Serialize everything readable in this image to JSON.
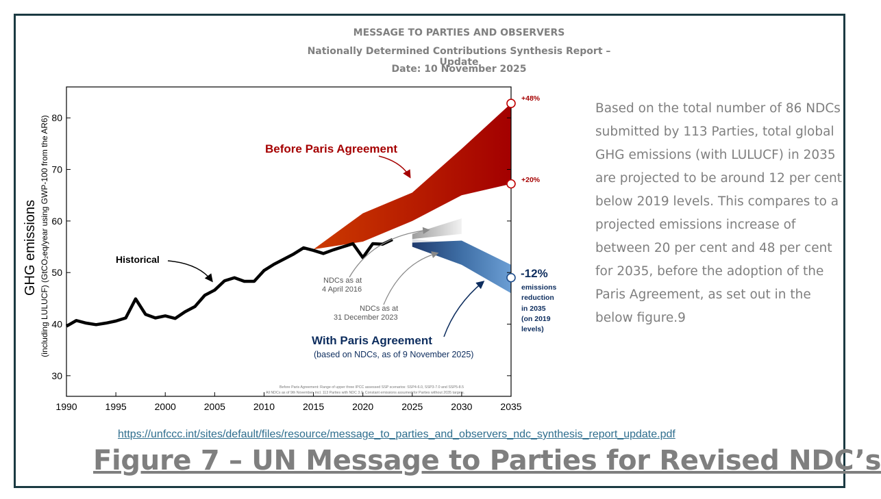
{
  "header": {
    "line1": "MESSAGE TO PARTIES AND OBSERVERS",
    "line2": "Nationally Determined Contributions Synthesis Report – Update",
    "line3": "Date: 10 November 2025"
  },
  "sidebar": {
    "text": "Based on the total number of 86 NDCs submitted by 113 Parties, total global GHG emissions (with LULUCF) in 2035 are projected to be around 12 per cent below 2019 levels. This compares to a projected emissions increase of between 20 per cent and 48 per cent for 2035, before the adoption of the Paris Agreement, as set out in the below figure.9"
  },
  "link": "https://unfccc.int/sites/default/files/resource/message_to_parties_and_observers_ndc_synthesis_report_update.pdf",
  "caption": "Figure 7 – UN Message to Parties for Revised NDC’s",
  "colors": {
    "before": "#c00000",
    "with": "#5b8cc0",
    "historical": "#000000",
    "text_grey": "#7f7f7f"
  },
  "chart_data": {
    "type": "line",
    "title": "",
    "ylabel": "GHG emissions",
    "ylabel_sub": "(including LULUCF) (GtCO₂eq/year using GWP-100 from the AR6)",
    "xlabel": "",
    "xlim": [
      1990,
      2035
    ],
    "ylim": [
      26,
      86
    ],
    "x_ticks": [
      "1990",
      "1995",
      "2000",
      "2005",
      "2010",
      "2015",
      "2020",
      "2025",
      "2030",
      "2035"
    ],
    "y_ticks": [
      "30",
      "40",
      "50",
      "60",
      "70",
      "80"
    ],
    "series": [
      {
        "name": "Historical",
        "x": [
          1990,
          1991,
          1992,
          1993,
          1994,
          1995,
          1996,
          1997,
          1998,
          1999,
          2000,
          2001,
          2002,
          2003,
          2004,
          2005,
          2006,
          2007,
          2008,
          2009,
          2010,
          2011,
          2012,
          2013,
          2014,
          2015,
          2016,
          2017,
          2018,
          2019,
          2020,
          2021,
          2022,
          2023
        ],
        "values": [
          39.6,
          40.7,
          40.2,
          39.9,
          40.2,
          40.6,
          41.2,
          44.9,
          41.9,
          41.2,
          41.6,
          41.1,
          42.4,
          43.4,
          45.6,
          46.6,
          48.4,
          49.0,
          48.3,
          48.3,
          50.4,
          51.6,
          52.6,
          53.6,
          54.8,
          54.3,
          53.7,
          54.4,
          55.0,
          55.6,
          52.9,
          55.6,
          55.5,
          56.4
        ]
      }
    ],
    "bands": [
      {
        "name": "Before Paris Agreement",
        "x": [
          2015,
          2020,
          2025,
          2030,
          2035
        ],
        "lower": [
          54.5,
          56.0,
          60.0,
          65.0,
          67.2
        ],
        "upper": [
          54.5,
          61.5,
          65.5,
          74.0,
          82.8
        ]
      },
      {
        "name": "NDCs as at 4 April 2016",
        "x": [
          2025,
          2030
        ],
        "lower": [
          56.5,
          57.5
        ],
        "upper": [
          57.5,
          60.5
        ]
      },
      {
        "name": "NDCs as at 31 December 2023",
        "x": [
          2025,
          2030
        ],
        "lower": [
          55.0,
          53.5
        ],
        "upper": [
          56.5,
          55.5
        ]
      },
      {
        "name": "With Paris Agreement",
        "x": [
          2025,
          2030,
          2035
        ],
        "lower": [
          55.0,
          51.5,
          46.0
        ],
        "upper": [
          55.8,
          56.2,
          51.5
        ]
      }
    ],
    "markers": [
      {
        "x": 2035,
        "value": 82.8,
        "label": "+48%"
      },
      {
        "x": 2035,
        "value": 67.2,
        "label": "+20%"
      },
      {
        "x": 2035,
        "value": 49.0,
        "label": "-12%"
      }
    ],
    "annotations": {
      "before": "Before Paris Agreement",
      "historical": "Historical",
      "ndc2016_line1": "NDCs as at",
      "ndc2016_line2": "4 April 2016",
      "ndc2023_line1": "NDCs as at",
      "ndc2023_line2": "31 December 2023",
      "with_title": "With Paris Agreement",
      "with_sub": "(based on NDCs, as of 9 November 2025)",
      "reduction": [
        "emissions",
        "reduction",
        "in 2035",
        "(on 2019",
        "levels)"
      ],
      "footnote1": "Before Paris Agreement: Range of upper three IPCC assessed SSP scenarios: SSP4-6.0, SSP3-7.0 and SSP5-8.5",
      "footnote2": "All NDCs as of 9th November, incl. 113 Parties with NDC 3.0. Constant emissions assumed for Parties without 2035 targets."
    }
  }
}
